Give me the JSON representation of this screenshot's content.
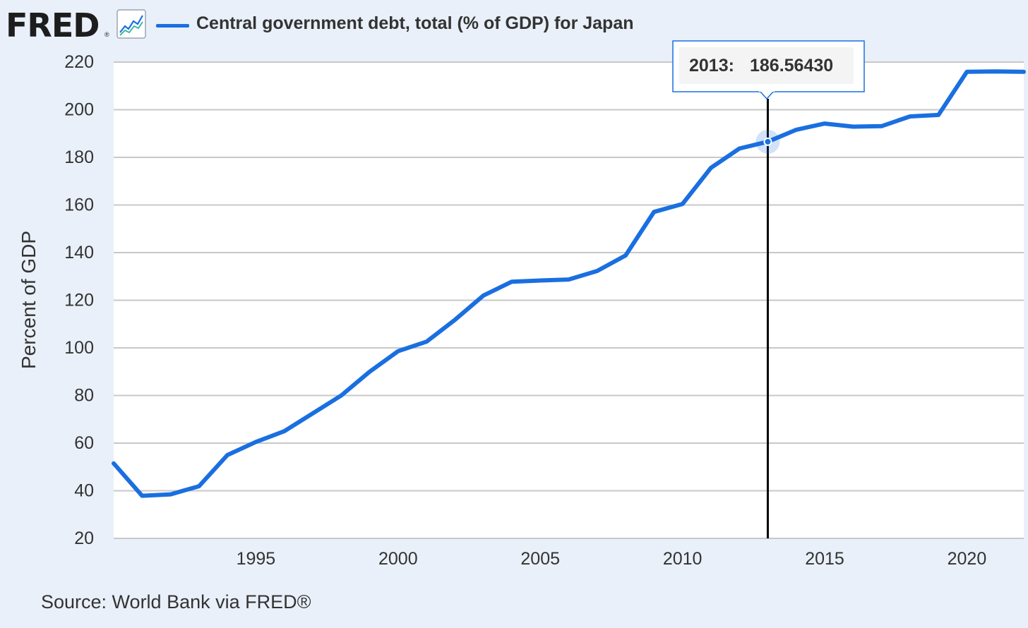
{
  "header": {
    "logo_text": "FRED",
    "logo_reg": "®",
    "icon": "line-chart-icon",
    "series_title": "Central government debt, total (% of GDP) for Japan"
  },
  "source": "Source: World Bank via FRED®",
  "tooltip": {
    "year": "2013:",
    "value": "186.56430"
  },
  "colors": {
    "series": "#1a6fe0",
    "background": "#e9f0f9",
    "plot": "#ffffff",
    "grid": "#c8c8c8"
  },
  "chart_data": {
    "type": "line",
    "title": "Central government debt, total (% of GDP) for Japan",
    "ylabel": "Percent of GDP",
    "xlabel": "",
    "ylim": [
      20,
      220
    ],
    "xlim": [
      1990,
      2022
    ],
    "yticks": [
      20,
      40,
      60,
      80,
      100,
      120,
      140,
      160,
      180,
      200,
      220
    ],
    "xticks": [
      1995,
      2000,
      2005,
      2010,
      2015,
      2020
    ],
    "grid": true,
    "legend": "top",
    "series": [
      {
        "name": "Central government debt, total (% of GDP) for Japan",
        "x": [
          1990,
          1991,
          1992,
          1993,
          1994,
          1995,
          1996,
          1997,
          1998,
          1999,
          2000,
          2001,
          2002,
          2003,
          2004,
          2005,
          2006,
          2007,
          2008,
          2009,
          2010,
          2011,
          2012,
          2013,
          2014,
          2015,
          2016,
          2017,
          2018,
          2019,
          2020,
          2021,
          2022
        ],
        "y": [
          51.5,
          37.9,
          38.5,
          41.9,
          55.0,
          60.5,
          65.0,
          72.5,
          80.0,
          90.0,
          98.6,
          102.6,
          111.8,
          122.0,
          127.8,
          128.3,
          128.7,
          132.3,
          138.8,
          157.1,
          160.4,
          175.6,
          183.7,
          186.5643,
          191.6,
          194.2,
          192.9,
          193.1,
          197.2,
          197.8,
          215.9,
          216.1,
          215.9
        ]
      }
    ],
    "highlight": {
      "x": 2013,
      "y": 186.5643
    }
  }
}
